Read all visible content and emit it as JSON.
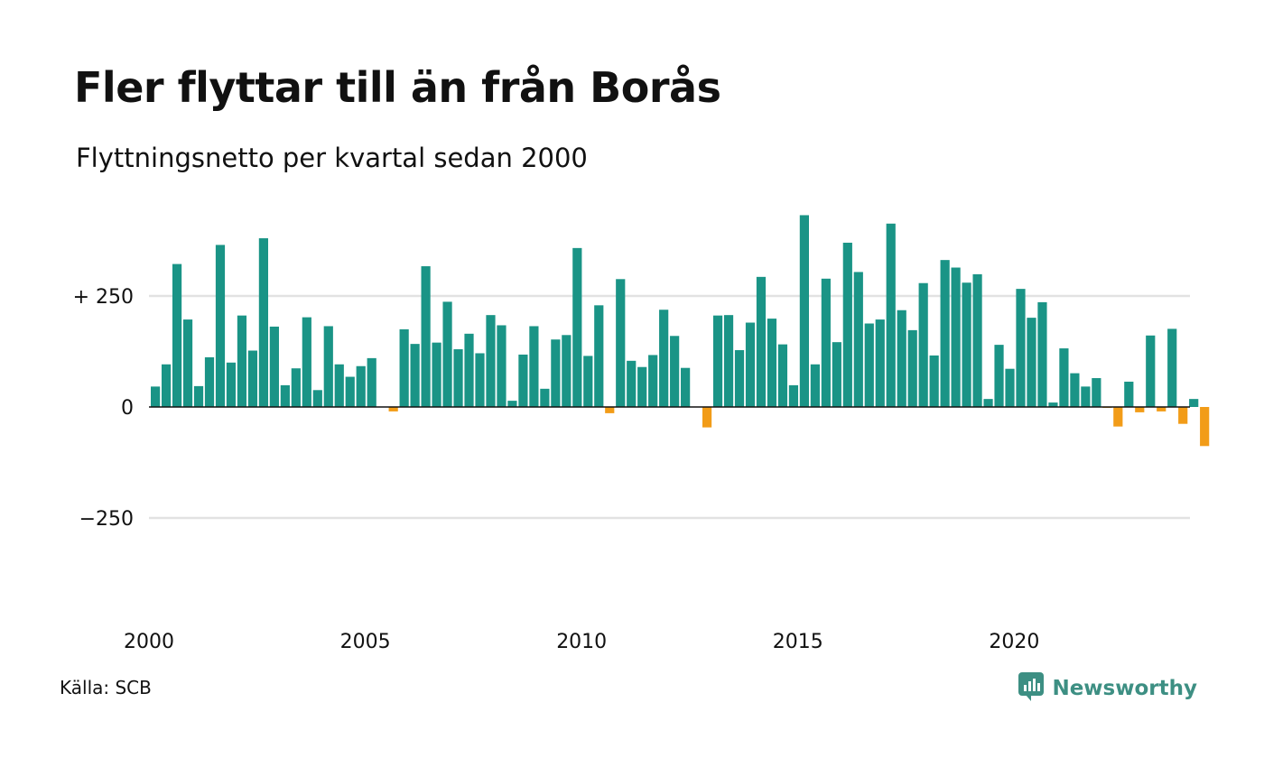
{
  "title": "Fler flyttar till än från Borås",
  "subtitle": "Flyttningsnetto per kvartal sedan 2000",
  "source": "Källa: SCB",
  "brand": {
    "name": "Newsworthy",
    "icon": "newsworthy-logo-icon",
    "color": "#3d8f83"
  },
  "colors": {
    "positive": "#1a9486",
    "negative": "#f29c18",
    "grid": "#e2e2e2",
    "zero_line": "#111111"
  },
  "chart_data": {
    "type": "bar",
    "x_start": "2000 Q1",
    "x_ticks": [
      "2000",
      "2005",
      "2010",
      "2015",
      "2020"
    ],
    "y_ticks": [
      {
        "value": 250,
        "label": "+ 250"
      },
      {
        "value": 0,
        "label": "0"
      },
      {
        "value": -250,
        "label": "−250"
      }
    ],
    "ylim": [
      -400,
      430
    ],
    "grid": true,
    "values": [
      46,
      96,
      322,
      197,
      47,
      112,
      365,
      100,
      206,
      127,
      380,
      181,
      49,
      87,
      202,
      38,
      182,
      96,
      68,
      92,
      110,
      0,
      -10,
      175,
      142,
      317,
      145,
      237,
      130,
      165,
      121,
      207,
      184,
      14,
      118,
      182,
      41,
      152,
      162,
      358,
      115,
      229,
      -14,
      288,
      104,
      90,
      117,
      219,
      160,
      88,
      0,
      -46,
      206,
      207,
      128,
      190,
      293,
      199,
      141,
      49,
      432,
      96,
      289,
      146,
      370,
      304,
      188,
      197,
      413,
      218,
      173,
      279,
      116,
      331,
      314,
      280,
      299,
      18,
      140,
      86,
      266,
      201,
      236,
      10,
      132,
      76,
      46,
      65,
      -1,
      -44,
      57,
      -12,
      161,
      -10,
      176,
      -38,
      18,
      -88
    ]
  }
}
